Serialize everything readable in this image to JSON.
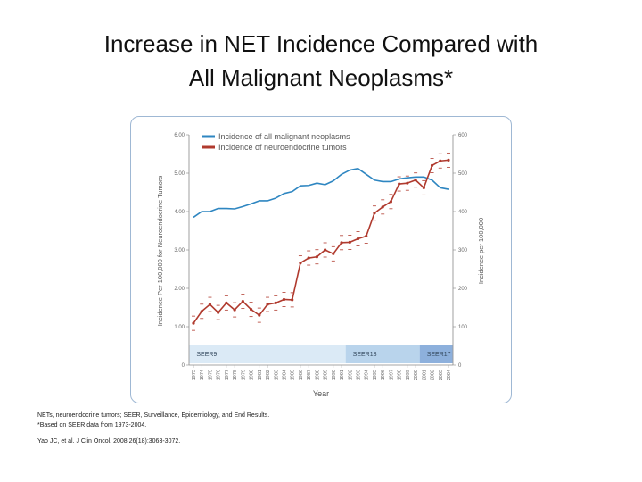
{
  "slide": {
    "title_line1": "Increase in NET Incidence Compared with",
    "title_line2": "All Malignant Neoplasms*"
  },
  "footnotes": {
    "line1": "NETs, neuroendocrine tumors; SEER, Surveillance, Epidemiology, and End Results.",
    "line2": "*Based on SEER data from 1973-2004.",
    "line3": "Yao JC, et al. J Clin Oncol. 2008;26(18):3063-3072."
  },
  "chart_data": {
    "type": "line",
    "xlabel": "Year",
    "ylabel_left": "Incidence Per 100,000 for Neuroendocrine Tumors",
    "ylabel_right": "Incidence per 100,000",
    "left_ylim": [
      0,
      6
    ],
    "right_ylim": [
      0,
      600
    ],
    "left_ticks": [
      "0",
      "1.00",
      "2.00",
      "3.00",
      "4.00",
      "5.00",
      "6.00"
    ],
    "right_ticks": [
      "0",
      "100",
      "200",
      "300",
      "400",
      "500",
      "600"
    ],
    "x": [
      1973,
      1974,
      1975,
      1976,
      1977,
      1978,
      1979,
      1980,
      1981,
      1982,
      1983,
      1984,
      1985,
      1986,
      1987,
      1988,
      1989,
      1990,
      1991,
      1992,
      1993,
      1994,
      1995,
      1996,
      1997,
      1998,
      1999,
      2000,
      2001,
      2002,
      2003,
      2004
    ],
    "legend_position": "top-left",
    "series": [
      {
        "name": "Incidence of all malignant neoplasms",
        "axis": "right",
        "color": "#2e86c1",
        "values": [
          385,
          400,
          400,
          408,
          408,
          407,
          413,
          420,
          428,
          428,
          435,
          447,
          452,
          467,
          468,
          474,
          470,
          480,
          497,
          508,
          512,
          497,
          482,
          478,
          478,
          485,
          488,
          490,
          490,
          482,
          462,
          458
        ]
      },
      {
        "name": "Incidence of neuroendocrine tumors",
        "axis": "left",
        "color": "#b03a2e",
        "values": [
          1.09,
          1.4,
          1.58,
          1.37,
          1.62,
          1.44,
          1.66,
          1.45,
          1.3,
          1.58,
          1.62,
          1.71,
          1.7,
          2.66,
          2.79,
          2.82,
          3.0,
          2.9,
          3.19,
          3.2,
          3.29,
          3.36,
          3.96,
          4.12,
          4.26,
          4.72,
          4.74,
          4.82,
          4.62,
          5.2,
          5.32,
          5.34
        ]
      }
    ],
    "registry_bands": [
      {
        "label": "SEER9",
        "start": 1973,
        "end": 1991.5,
        "color": "#dbeaf6"
      },
      {
        "label": "SEER13",
        "start": 1991.5,
        "end": 2000.5,
        "color": "#b9d4ec"
      },
      {
        "label": "SEER17",
        "start": 2000.5,
        "end": 2004.5,
        "color": "#8db0dc"
      }
    ]
  }
}
